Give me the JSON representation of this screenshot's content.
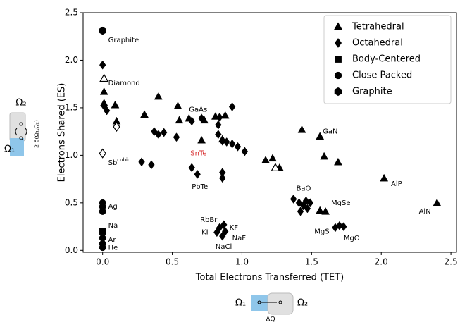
{
  "chart_data": {
    "type": "scatter",
    "x_label": "Total Electrons Transferred (TET)",
    "y_label": "Electrons Shared (ES)",
    "xlim": [
      -0.14,
      2.54
    ],
    "ylim": [
      -0.02,
      2.5
    ],
    "xticks": [
      {
        "value": 0,
        "label": "0.0"
      },
      {
        "value": 0.5,
        "label": "0.5"
      },
      {
        "value": 1,
        "label": "1.0"
      },
      {
        "value": 1.5,
        "label": "1.5"
      },
      {
        "value": 2,
        "label": "2.0"
      },
      {
        "value": 2.5,
        "label": "2.5"
      }
    ],
    "yticks": [
      {
        "value": 0,
        "label": "0.0"
      },
      {
        "value": 0.5,
        "label": "0.5"
      },
      {
        "value": 1,
        "label": "1.0"
      },
      {
        "value": 1.5,
        "label": "1.5"
      },
      {
        "value": 2,
        "label": "2.0"
      },
      {
        "value": 2.5,
        "label": "2.5"
      }
    ],
    "legend": "upper right",
    "series": [
      {
        "name": "Tetrahedral",
        "marker": "triangle",
        "color": "#000000",
        "x": [
          0.01,
          0.01,
          0.09,
          0.1,
          0.3,
          0.4,
          0.54,
          0.55,
          0.62,
          0.73,
          0.71,
          0.81,
          0.88,
          0.86,
          1.17,
          1.22,
          1.27,
          1.43,
          1.56,
          1.59,
          1.69,
          1.56,
          1.6,
          2.02,
          2.4,
          0.01,
          1.24
        ],
        "values": [
          1.67,
          1.55,
          1.53,
          1.36,
          1.43,
          1.62,
          1.52,
          1.37,
          1.39,
          1.37,
          1.16,
          1.41,
          1.42,
          1.17,
          0.95,
          0.97,
          0.87,
          1.27,
          1.2,
          0.99,
          0.93,
          0.42,
          0.41,
          0.76,
          0.5,
          1.81,
          0.87
        ],
        "hollow": [
          25,
          26
        ]
      },
      {
        "name": "Octahedral",
        "marker": "diamond",
        "color": "#000000",
        "x": [
          0,
          0.01,
          0.03,
          0.28,
          0.35,
          0.37,
          0.4,
          0.44,
          0.53,
          0.64,
          0.71,
          0.83,
          0.83,
          0.84,
          0.86,
          0.89,
          0.93,
          0.93,
          0.97,
          1.02,
          0.64,
          0.68,
          0.86,
          0.86,
          1.37,
          1.41,
          1.44,
          1.47,
          1.46,
          1.42,
          1.49,
          1.67,
          1.7,
          1.73,
          0.84,
          0.87,
          0.82,
          0.86,
          0.88,
          0.1,
          0
        ],
        "values": [
          1.95,
          1.52,
          1.47,
          0.93,
          0.9,
          1.25,
          1.22,
          1.24,
          1.19,
          1.36,
          1.39,
          1.32,
          1.22,
          1.4,
          1.15,
          1.14,
          1.12,
          1.51,
          1.09,
          1.04,
          0.87,
          0.8,
          0.82,
          0.76,
          0.54,
          0.5,
          0.47,
          0.44,
          0.52,
          0.41,
          0.5,
          0.24,
          0.26,
          0.25,
          0.24,
          0.27,
          0.19,
          0.15,
          0.2,
          1.3,
          1.02
        ],
        "hollow": [
          39,
          40
        ]
      },
      {
        "name": "Body-Centered",
        "marker": "square",
        "color": "#000000",
        "x": [
          0
        ],
        "values": [
          0.2
        ]
      },
      {
        "name": "Close Packed",
        "marker": "circle",
        "color": "#000000",
        "x": [
          0,
          0,
          0,
          0,
          0,
          0
        ],
        "values": [
          0.5,
          0.46,
          0.41,
          0.13,
          0.07,
          0.03
        ]
      },
      {
        "name": "Graphite",
        "marker": "hexagon",
        "color": "#000000",
        "x": [
          0
        ],
        "values": [
          2.31
        ]
      }
    ],
    "annotations": [
      {
        "text": "Graphite",
        "x": 0.04,
        "y": 2.21
      },
      {
        "text": "Diamond",
        "x": 0.04,
        "y": 1.76
      },
      {
        "text": "GaAs",
        "x": 0.62,
        "y": 1.48
      },
      {
        "text": "GaN",
        "x": 1.58,
        "y": 1.25
      },
      {
        "text": "SnTe",
        "x": 0.63,
        "y": 1.02,
        "color": "#d62728"
      },
      {
        "text": "Sb",
        "sup": "cubic",
        "x": 0.04,
        "y": 0.92
      },
      {
        "text": "PbTe",
        "x": 0.64,
        "y": 0.67
      },
      {
        "text": "BaO",
        "x": 1.39,
        "y": 0.65
      },
      {
        "text": "MgSe",
        "x": 1.64,
        "y": 0.5
      },
      {
        "text": "AlP",
        "x": 2.07,
        "y": 0.7
      },
      {
        "text": "AlN",
        "x": 2.27,
        "y": 0.41
      },
      {
        "text": "MgS",
        "x": 1.52,
        "y": 0.2
      },
      {
        "text": "MgO",
        "x": 1.73,
        "y": 0.13
      },
      {
        "text": "Ag",
        "x": 0.04,
        "y": 0.46
      },
      {
        "text": "Na",
        "x": 0.04,
        "y": 0.26
      },
      {
        "text": "Ar",
        "x": 0.04,
        "y": 0.11
      },
      {
        "text": "He",
        "x": 0.04,
        "y": 0.03
      },
      {
        "text": "RbBr",
        "x": 0.7,
        "y": 0.32
      },
      {
        "text": "KF",
        "x": 0.91,
        "y": 0.24
      },
      {
        "text": "KI",
        "x": 0.71,
        "y": 0.19
      },
      {
        "text": "NaF",
        "x": 0.93,
        "y": 0.13
      },
      {
        "text": "NaCl",
        "x": 0.81,
        "y": 0.04
      }
    ]
  },
  "insets": {
    "left": {
      "top": "Ω₂",
      "bottom": "Ω₁",
      "side": "2 δ(Ω₁,Ω₂)"
    },
    "bottom": {
      "left": "Ω₁",
      "right": "Ω₂",
      "below": "ΔQ"
    }
  }
}
